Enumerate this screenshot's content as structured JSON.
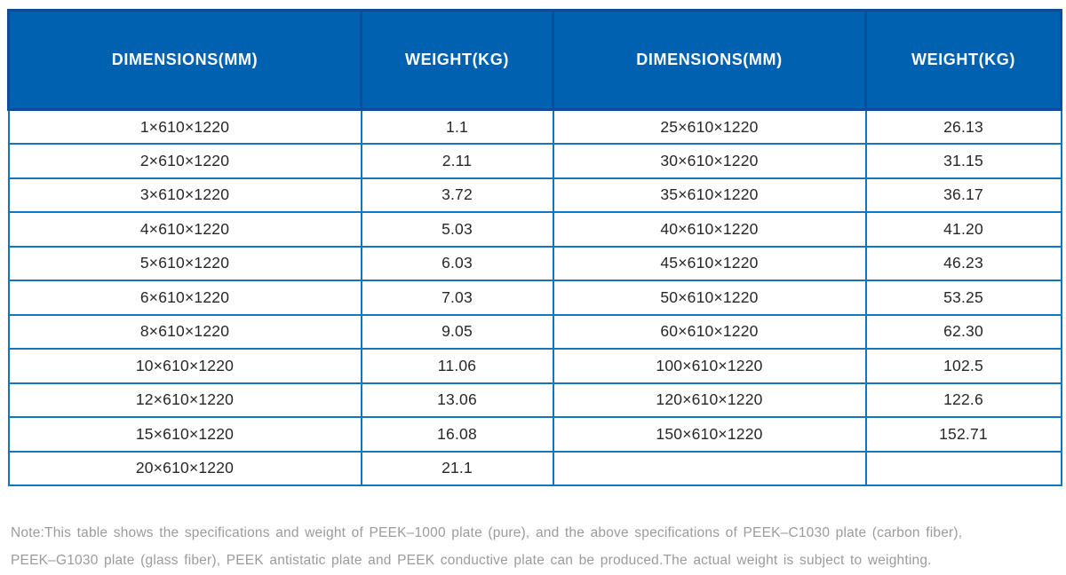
{
  "chart_data": {
    "type": "table",
    "columns": [
      "DIMENSIONS(MM)",
      "WEIGHT(KG)",
      "DIMENSIONS(MM)",
      "WEIGHT(KG)"
    ],
    "rows": [
      [
        "1×610×1220",
        "1.1",
        "25×610×1220",
        "26.13"
      ],
      [
        "2×610×1220",
        "2.11",
        "30×610×1220",
        "31.15"
      ],
      [
        "3×610×1220",
        "3.72",
        "35×610×1220",
        "36.17"
      ],
      [
        "4×610×1220",
        "5.03",
        "40×610×1220",
        "41.20"
      ],
      [
        "5×610×1220",
        "6.03",
        "45×610×1220",
        "46.23"
      ],
      [
        "6×610×1220",
        "7.03",
        "50×610×1220",
        "53.25"
      ],
      [
        "8×610×1220",
        "9.05",
        "60×610×1220",
        "62.30"
      ],
      [
        "10×610×1220",
        "11.06",
        "100×610×1220",
        "102.5"
      ],
      [
        "12×610×1220",
        "13.06",
        "120×610×1220",
        "122.6"
      ],
      [
        "15×610×1220",
        "16.08",
        "150×610×1220",
        "152.71"
      ],
      [
        "20×610×1220",
        "21.1",
        "",
        ""
      ]
    ]
  },
  "note": {
    "line1": "Note:This table shows the specifications and weight of PEEK–1000 plate (pure), and the above specifications of PEEK–C1030 plate (carbon fiber),",
    "line2": "PEEK–G1030 plate (glass fiber), PEEK antistatic plate and PEEK conductive plate can be produced.The actual weight is subject to weighting."
  },
  "colors": {
    "header_bg": "#0061b1",
    "header_divider": "#0a4d9f",
    "grid_border": "#1176bb",
    "cell_text": "#272727",
    "note_text": "#9b9b9b"
  }
}
